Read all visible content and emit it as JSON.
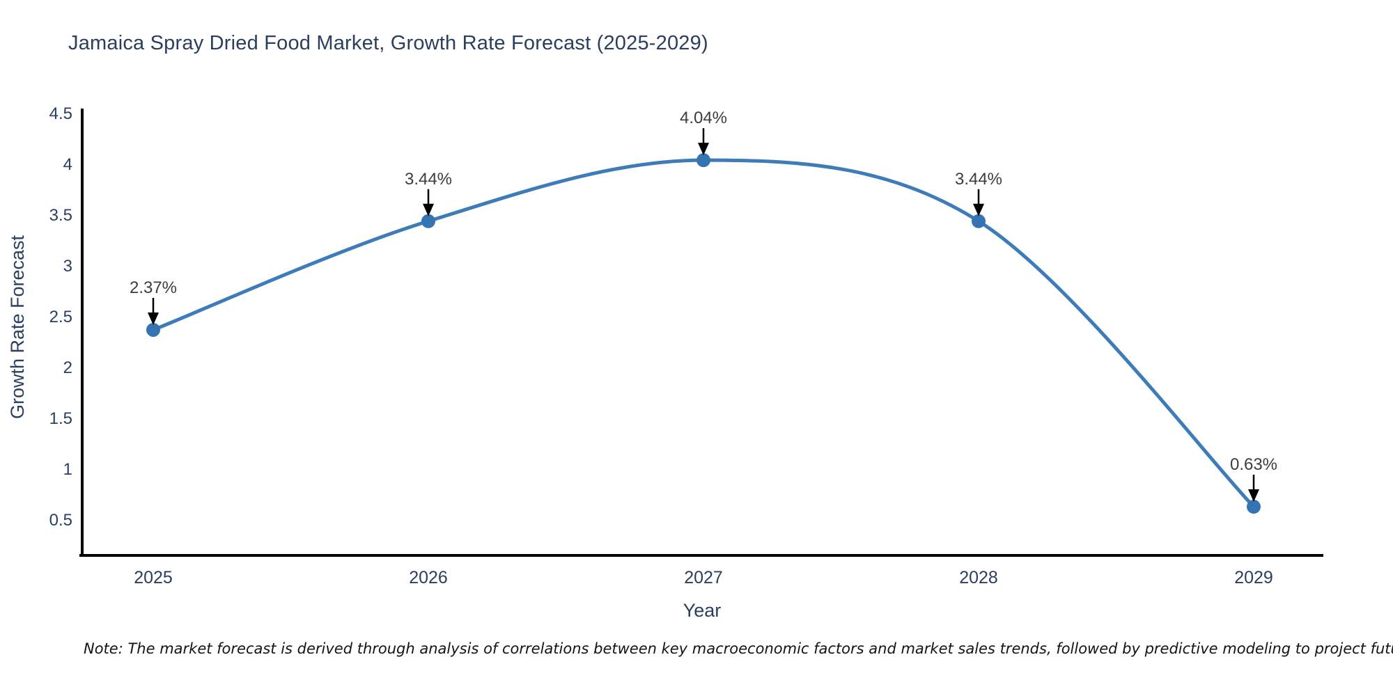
{
  "page": {
    "note": "Note: The market forecast is derived through analysis of correlations between key macroeconomic factors and market sales trends, followed by predictive modeling to project future sales"
  },
  "chart_data": {
    "type": "line",
    "title": "Jamaica Spray Dried Food Market, Growth Rate Forecast (2025-2029)",
    "xlabel": "Year",
    "ylabel": "Growth Rate Forecast",
    "categories": [
      "2025",
      "2026",
      "2027",
      "2028",
      "2029"
    ],
    "values": [
      2.37,
      3.44,
      4.04,
      3.44,
      0.63
    ],
    "point_labels": [
      "2.37%",
      "3.44%",
      "4.04%",
      "3.44%",
      "0.63%"
    ],
    "y_ticks": [
      0.5,
      1,
      1.5,
      2,
      2.5,
      3,
      3.5,
      4,
      4.5
    ],
    "y_tick_labels": [
      "0.5",
      "1",
      "1.5",
      "2",
      "2.5",
      "3",
      "3.5",
      "4",
      "4.5"
    ],
    "ylim": [
      0.15,
      4.55
    ],
    "line_shape": "spline",
    "grid": false,
    "legend_position": "none",
    "colors": {
      "line": "#3d7bb9",
      "marker": "#3474b3",
      "axis": "#000000",
      "axis_text": "#2a3f5f",
      "annotation_text": "#3d3d3d",
      "annotation_arrow": "#000000"
    }
  }
}
